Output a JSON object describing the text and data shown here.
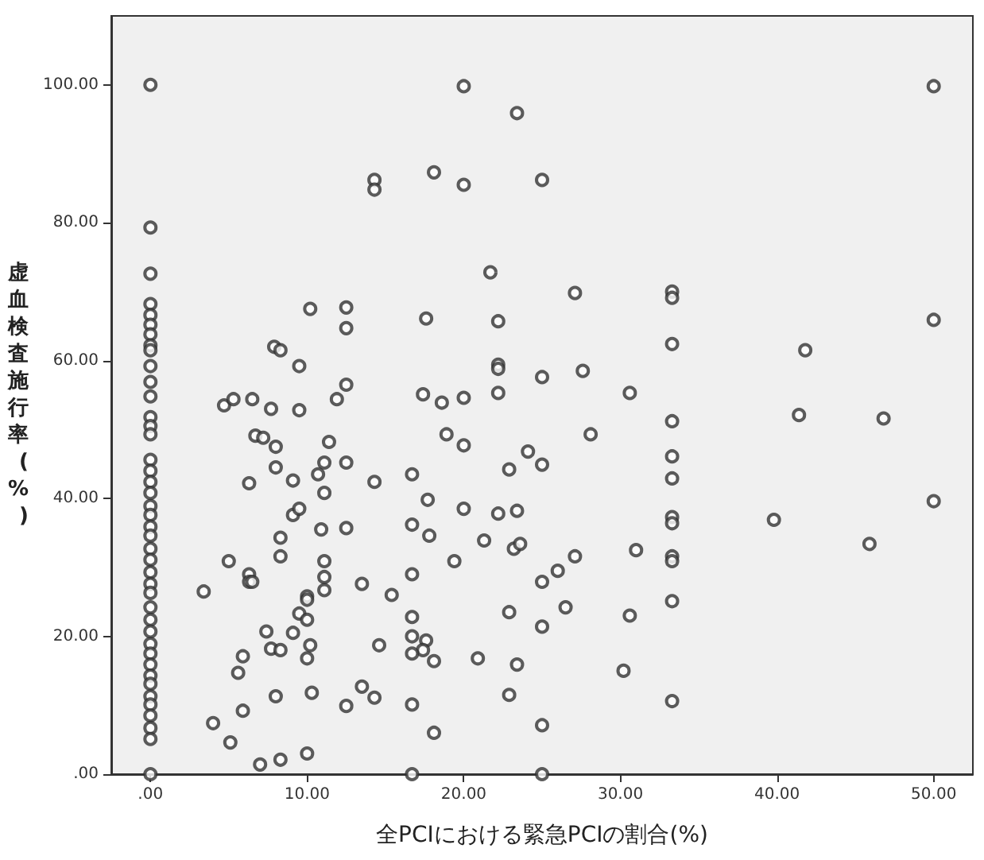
{
  "chart_data": {
    "type": "scatter",
    "xlabel": "全PCIにおける緊急PCIの割合(%)",
    "ylabel": "虚血検査施行率(%)",
    "xlim": [
      -2.5,
      52.5
    ],
    "ylim": [
      0,
      110
    ],
    "xticks": [
      {
        "value": 0,
        "label": ".00"
      },
      {
        "value": 10,
        "label": "10.00"
      },
      {
        "value": 20,
        "label": "20.00"
      },
      {
        "value": 30,
        "label": "30.00"
      },
      {
        "value": 40,
        "label": "40.00"
      },
      {
        "value": 50,
        "label": "50.00"
      }
    ],
    "yticks": [
      {
        "value": 0,
        "label": ".00"
      },
      {
        "value": 20,
        "label": "20.00"
      },
      {
        "value": 40,
        "label": "40.00"
      },
      {
        "value": 60,
        "label": "60.00"
      },
      {
        "value": 80,
        "label": "80.00"
      },
      {
        "value": 100,
        "label": "100.00"
      }
    ],
    "grid": false,
    "marker": "circle",
    "series": [
      {
        "color": "#333333",
        "x": [
          0,
          0,
          0,
          0,
          0,
          0,
          0,
          0,
          0,
          0,
          0,
          0,
          0,
          0,
          0,
          0,
          0,
          0,
          0,
          0,
          0,
          0,
          0,
          0,
          0,
          0,
          0,
          0,
          0,
          0,
          0,
          0,
          0,
          0,
          0,
          0,
          0,
          0,
          0,
          0,
          0,
          0,
          3.4,
          5,
          4,
          5.1,
          5.6,
          5.9,
          5.9,
          6.3,
          6.3,
          6.3,
          6.5,
          6.7,
          7.2,
          7,
          8,
          8,
          8.3,
          8.3,
          7.4,
          7.7,
          8.3,
          8,
          8.3,
          9.1,
          9.1,
          9.5,
          9.1,
          9.5,
          10,
          10,
          10,
          10,
          10.2,
          10,
          10.3,
          10.7,
          10.9,
          11.1,
          11.1,
          11.1,
          11.1,
          11.1,
          11.4,
          12.5,
          12.5,
          12.5,
          13.5,
          13.5,
          14.3,
          14.3,
          14.6,
          15.4,
          4.7,
          5.3,
          6.5,
          7.7,
          9.5,
          11.9,
          12.5,
          10.2,
          12.5,
          12.5,
          7.9,
          8.3,
          9.5,
          14.3,
          14.3,
          20,
          23.4,
          18.1,
          20,
          25,
          21.7,
          27.1,
          33.3,
          33.3,
          17.6,
          22.2,
          33.3,
          22.2,
          22.2,
          25,
          27.6,
          17.4,
          18.6,
          20,
          22.2,
          30.6,
          33.3,
          18.9,
          20,
          28.1,
          24.1,
          25,
          22.9,
          33.3,
          33.3,
          16.7,
          17.7,
          20,
          22.2,
          23.4,
          16.7,
          17.8,
          21.3,
          23.2,
          23.6,
          33.3,
          33.3,
          33.3,
          33.3,
          31,
          27.1,
          26,
          19.4,
          16.7,
          25,
          33.3,
          22.9,
          26.5,
          25,
          30.6,
          16.7,
          16.7,
          17.6,
          17.4,
          16.7,
          18.1,
          20.9,
          23.4,
          30.2,
          33.3,
          22.9,
          16.7,
          18.1,
          25,
          16.7,
          25,
          50,
          50,
          41.8,
          41.4,
          46.8,
          50,
          39.8,
          45.9
        ],
        "values": [
          100,
          79.3,
          72.6,
          68.2,
          66.6,
          65.2,
          63.8,
          62.2,
          61.5,
          59.2,
          56.9,
          54.8,
          51.8,
          50.5,
          49.3,
          45.6,
          44,
          42.4,
          40.8,
          38.9,
          37.6,
          35.9,
          34.6,
          32.7,
          31.1,
          29.3,
          27.6,
          26.3,
          24.2,
          22.4,
          20.7,
          18.9,
          17.5,
          15.9,
          14.3,
          13.1,
          11.3,
          10.1,
          8.5,
          6.7,
          5.1,
          0,
          26.5,
          30.9,
          7.4,
          4.6,
          14.7,
          17.1,
          9.2,
          42.2,
          29,
          27.9,
          27.9,
          49.1,
          48.8,
          1.4,
          47.5,
          44.5,
          34.3,
          31.6,
          20.7,
          18.2,
          18,
          11.3,
          2.1,
          42.6,
          37.6,
          38.5,
          20.5,
          23.3,
          22.4,
          25.8,
          25.3,
          16.8,
          18.7,
          3,
          11.8,
          43.5,
          35.5,
          45.2,
          40.8,
          30.9,
          28.6,
          26.7,
          48.2,
          45.2,
          35.7,
          9.9,
          27.6,
          12.7,
          42.4,
          11.1,
          18.7,
          26,
          53.5,
          54.4,
          54.4,
          53,
          52.8,
          54.4,
          56.5,
          67.5,
          67.7,
          64.7,
          62,
          61.5,
          59.2,
          86.2,
          84.8,
          99.8,
          95.9,
          87.3,
          85.5,
          86.2,
          72.8,
          69.8,
          70,
          69.1,
          66.1,
          65.7,
          62.4,
          59.4,
          58.8,
          57.6,
          58.5,
          55.1,
          53.9,
          54.6,
          55.3,
          55.3,
          51.2,
          49.3,
          47.7,
          49.3,
          46.8,
          44.9,
          44.2,
          46.1,
          42.9,
          43.5,
          39.8,
          38.5,
          37.8,
          38.2,
          36.2,
          34.6,
          33.9,
          32.7,
          33.4,
          37.3,
          36.4,
          31.6,
          30.9,
          32.5,
          31.6,
          29.5,
          30.9,
          29,
          27.9,
          25.1,
          23.5,
          24.2,
          21.4,
          23,
          22.8,
          20,
          19.4,
          18,
          17.5,
          16.4,
          16.8,
          15.9,
          15,
          10.6,
          11.5,
          10.1,
          6,
          7.1,
          0,
          0,
          99.8,
          65.9,
          61.5,
          52.1,
          51.6,
          39.6,
          36.9,
          33.4
        ]
      }
    ]
  }
}
